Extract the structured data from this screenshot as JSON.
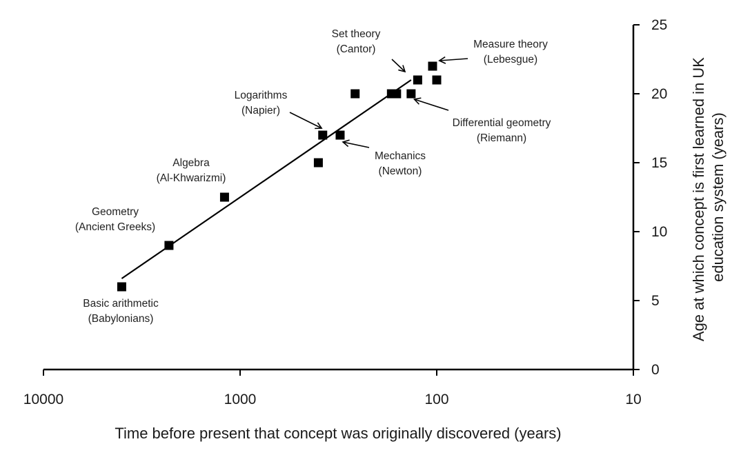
{
  "chart_data": {
    "type": "scatter",
    "x_scale": "log",
    "x_reversed": true,
    "xlim": [
      10000,
      10
    ],
    "ylim": [
      0,
      25
    ],
    "xlabel": "Time before present that concept was originally discovered (years)",
    "ylabel_lines": [
      "Age at which concept is first learned in UK",
      "education system (years)"
    ],
    "y_axis_position": "right",
    "x_ticks": [
      {
        "value": 10000,
        "label": "10000"
      },
      {
        "value": 1000,
        "label": "1000"
      },
      {
        "value": 100,
        "label": "100"
      },
      {
        "value": 10,
        "label": "10"
      }
    ],
    "y_ticks": [
      {
        "value": 0,
        "label": "0"
      },
      {
        "value": 5,
        "label": "5"
      },
      {
        "value": 10,
        "label": "10"
      },
      {
        "value": 15,
        "label": "15"
      },
      {
        "value": 20,
        "label": "20"
      },
      {
        "value": 25,
        "label": "25"
      }
    ],
    "points": [
      {
        "x": 4000,
        "y": 6
      },
      {
        "x": 2300,
        "y": 9
      },
      {
        "x": 1200,
        "y": 12.5
      },
      {
        "x": 400,
        "y": 15
      },
      {
        "x": 380,
        "y": 17
      },
      {
        "x": 310,
        "y": 17
      },
      {
        "x": 260,
        "y": 20
      },
      {
        "x": 170,
        "y": 20
      },
      {
        "x": 160,
        "y": 20
      },
      {
        "x": 135,
        "y": 20
      },
      {
        "x": 125,
        "y": 21
      },
      {
        "x": 105,
        "y": 22
      },
      {
        "x": 100,
        "y": 21
      }
    ],
    "trendline": {
      "x": [
        4000,
        135
      ],
      "y": [
        6.6,
        21
      ]
    },
    "annotations": [
      {
        "lines": [
          "Basic arithmetic",
          "(Babylonians)"
        ]
      },
      {
        "lines": [
          "Geometry",
          "(Ancient Greeks)"
        ]
      },
      {
        "lines": [
          "Algebra",
          "(Al-Khwarizmi)"
        ]
      },
      {
        "lines": [
          "Logarithms",
          "(Napier)"
        ],
        "arrow_to": {
          "x": 385,
          "y": 17.5
        }
      },
      {
        "lines": [
          "Mechanics",
          "(Newton)"
        ],
        "arrow_to": {
          "x": 300,
          "y": 16.5
        }
      },
      {
        "lines": [
          "Set theory",
          "(Cantor)"
        ],
        "arrow_to": {
          "x": 145,
          "y": 21.6
        }
      },
      {
        "lines": [
          "Measure theory",
          "(Lebesgue)"
        ],
        "arrow_to": {
          "x": 97,
          "y": 22.4
        }
      },
      {
        "lines": [
          "Differential geometry",
          "(Riemann)"
        ],
        "arrow_to": {
          "x": 130,
          "y": 19.6
        }
      }
    ]
  }
}
